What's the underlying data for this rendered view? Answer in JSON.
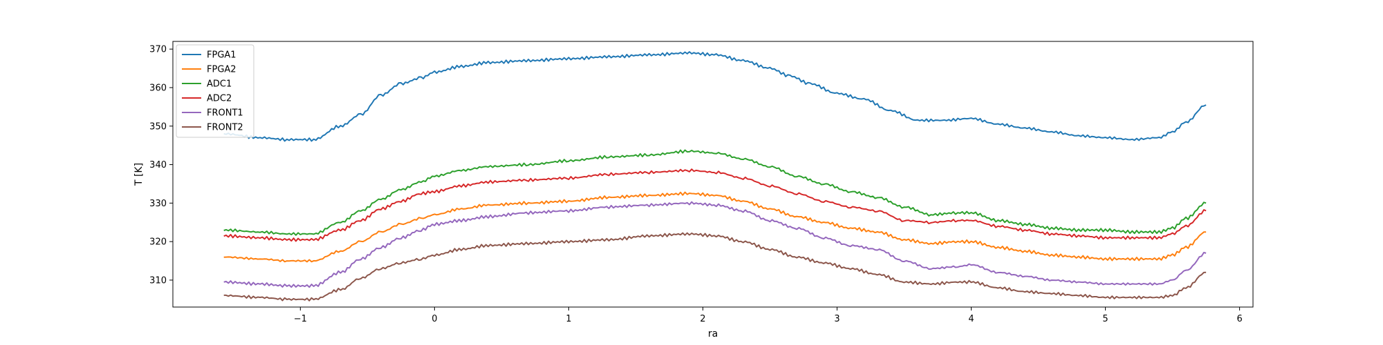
{
  "chart_data": {
    "type": "line",
    "title": "",
    "xlabel": "ra",
    "ylabel": "T [K]",
    "xlim": [
      -1.95,
      6.1
    ],
    "ylim": [
      303,
      372
    ],
    "xticks": [
      -1,
      0,
      1,
      2,
      3,
      4,
      5,
      6
    ],
    "xtick_labels": [
      "−1",
      "0",
      "1",
      "2",
      "3",
      "4",
      "5",
      "6"
    ],
    "yticks": [
      310,
      320,
      330,
      340,
      350,
      360,
      370
    ],
    "ytick_labels": [
      "310",
      "320",
      "330",
      "340",
      "350",
      "360",
      "370"
    ],
    "grid": false,
    "legend_position": "upper-left",
    "series": [
      {
        "name": "FPGA1",
        "color": "#1f77b4",
        "x": [
          -1.57,
          -1.3,
          -1.1,
          -0.9,
          -0.7,
          -0.55,
          -0.4,
          -0.25,
          -0.1,
          0.0,
          0.2,
          0.4,
          0.7,
          1.0,
          1.3,
          1.6,
          1.9,
          2.1,
          2.3,
          2.5,
          2.65,
          2.8,
          3.0,
          3.2,
          3.4,
          3.6,
          3.8,
          4.0,
          4.2,
          4.4,
          4.6,
          4.8,
          5.0,
          5.2,
          5.4,
          5.5,
          5.6,
          5.75
        ],
        "y": [
          348,
          347,
          346.5,
          346.5,
          350,
          353,
          358,
          361,
          362.5,
          364,
          365.5,
          366.5,
          367,
          367.5,
          368,
          368.5,
          369,
          368.5,
          367,
          365,
          363,
          361,
          358.5,
          357,
          354,
          351.5,
          351.5,
          352,
          350.5,
          349.5,
          348.5,
          347.5,
          347,
          346.5,
          347,
          348.5,
          351,
          355.5
        ]
      },
      {
        "name": "FPGA2",
        "color": "#ff7f0e",
        "x": [
          -1.57,
          -1.3,
          -1.1,
          -0.9,
          -0.7,
          -0.55,
          -0.4,
          -0.25,
          -0.1,
          0.0,
          0.2,
          0.4,
          0.7,
          1.0,
          1.3,
          1.6,
          1.9,
          2.1,
          2.3,
          2.5,
          2.7,
          2.9,
          3.1,
          3.3,
          3.5,
          3.7,
          3.9,
          4.0,
          4.2,
          4.4,
          4.6,
          4.8,
          5.0,
          5.2,
          5.4,
          5.5,
          5.6,
          5.75
        ],
        "y": [
          316,
          315.5,
          315,
          315,
          317.5,
          320,
          322.5,
          324.5,
          326,
          327,
          328.5,
          329.5,
          330,
          330.5,
          331.5,
          332,
          332.5,
          332,
          330.5,
          328.5,
          326.5,
          325,
          323.5,
          322.5,
          320.5,
          319.5,
          320,
          320,
          318.5,
          317.5,
          316.5,
          316,
          315.5,
          315.5,
          315.5,
          316.5,
          318.5,
          322.5
        ]
      },
      {
        "name": "ADC1",
        "color": "#2ca02c",
        "x": [
          -1.57,
          -1.3,
          -1.1,
          -0.9,
          -0.7,
          -0.55,
          -0.4,
          -0.25,
          -0.1,
          0.0,
          0.2,
          0.4,
          0.7,
          1.0,
          1.3,
          1.6,
          1.9,
          2.1,
          2.3,
          2.5,
          2.7,
          2.9,
          3.1,
          3.3,
          3.5,
          3.7,
          3.9,
          4.0,
          4.2,
          4.4,
          4.6,
          4.8,
          5.0,
          5.2,
          5.4,
          5.5,
          5.6,
          5.75
        ],
        "y": [
          323,
          322.5,
          322,
          322,
          325,
          328,
          331,
          333.5,
          335.5,
          337,
          338.5,
          339.5,
          340,
          341,
          342,
          342.5,
          343.5,
          343,
          341.5,
          339.5,
          337,
          335,
          333,
          331.5,
          329,
          327,
          327.5,
          327.5,
          325.5,
          324.5,
          323.5,
          323,
          323,
          322.5,
          322.5,
          323.5,
          326,
          330
        ]
      },
      {
        "name": "ADC2",
        "color": "#d62728",
        "x": [
          -1.57,
          -1.3,
          -1.1,
          -0.9,
          -0.7,
          -0.55,
          -0.4,
          -0.25,
          -0.1,
          0.0,
          0.2,
          0.4,
          0.7,
          1.0,
          1.3,
          1.6,
          1.9,
          2.1,
          2.3,
          2.5,
          2.7,
          2.9,
          3.1,
          3.3,
          3.5,
          3.7,
          3.9,
          4.0,
          4.2,
          4.4,
          4.6,
          4.8,
          5.0,
          5.2,
          5.4,
          5.5,
          5.6,
          5.75
        ],
        "y": [
          321.5,
          321,
          320.5,
          320.5,
          323,
          325.5,
          328.5,
          330.5,
          332.5,
          333,
          334.5,
          335.5,
          336,
          336.5,
          337.5,
          338,
          338.5,
          338,
          336.5,
          334.5,
          332.5,
          330.5,
          329,
          328,
          325.5,
          325,
          325.5,
          325.5,
          324,
          323,
          322,
          321.5,
          321,
          321,
          321,
          322,
          324,
          328
        ]
      },
      {
        "name": "FRONT1",
        "color": "#9467bd",
        "x": [
          -1.57,
          -1.3,
          -1.1,
          -0.9,
          -0.7,
          -0.55,
          -0.4,
          -0.25,
          -0.1,
          0.0,
          0.2,
          0.4,
          0.7,
          1.0,
          1.3,
          1.6,
          1.9,
          2.1,
          2.3,
          2.5,
          2.7,
          2.9,
          3.1,
          3.3,
          3.5,
          3.7,
          3.9,
          4.0,
          4.2,
          4.4,
          4.6,
          4.8,
          5.0,
          5.2,
          5.4,
          5.5,
          5.6,
          5.75
        ],
        "y": [
          309.5,
          309,
          308.5,
          308.5,
          312,
          315.5,
          318.5,
          321,
          323,
          324.5,
          325.5,
          326.5,
          327.5,
          328,
          329,
          329.5,
          330,
          329.5,
          328,
          325.5,
          323.5,
          321,
          319,
          318,
          315,
          313,
          313.5,
          314,
          312,
          311,
          310,
          309.5,
          309,
          309,
          309,
          310,
          312.5,
          317
        ]
      },
      {
        "name": "FRONT2",
        "color": "#8c564b",
        "x": [
          -1.57,
          -1.3,
          -1.1,
          -0.9,
          -0.7,
          -0.55,
          -0.4,
          -0.25,
          -0.1,
          0.0,
          0.2,
          0.4,
          0.7,
          1.0,
          1.3,
          1.6,
          1.9,
          2.1,
          2.3,
          2.5,
          2.7,
          2.9,
          3.1,
          3.3,
          3.5,
          3.7,
          3.9,
          4.0,
          4.2,
          4.4,
          4.6,
          4.8,
          5.0,
          5.2,
          5.4,
          5.5,
          5.6,
          5.75
        ],
        "y": [
          306,
          305.5,
          305,
          305,
          307.5,
          310.5,
          313,
          314.5,
          315.5,
          316.5,
          318,
          319,
          319.5,
          320,
          320.5,
          321.5,
          322,
          321.5,
          320,
          318,
          316,
          314.5,
          313,
          311.5,
          309.5,
          309,
          309.5,
          309.5,
          308,
          307,
          306.5,
          306,
          305.5,
          305.5,
          305.5,
          306,
          308,
          312
        ]
      }
    ]
  }
}
